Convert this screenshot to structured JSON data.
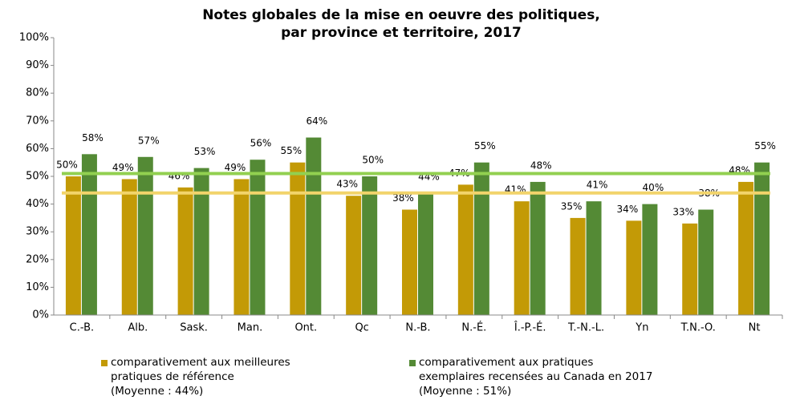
{
  "chart_data": {
    "type": "bar",
    "title": [
      "Notes globales de la mise en oeuvre des politiques,",
      "par province et territoire, 2017"
    ],
    "categories": [
      "C.-B.",
      "Alb.",
      "Sask.",
      "Man.",
      "Ont.",
      "Qc",
      "N.-B.",
      "N.-É.",
      "Î.-P.-É.",
      "T.-N.-L.",
      "Yn",
      "T.N.-O.",
      "Nt"
    ],
    "series": [
      {
        "name": "comparativement aux meilleures pratiques de référence",
        "color": "#c39a06",
        "average": 44,
        "average_label": "(Moyenne : 44%)",
        "average_color": "#f2d46b",
        "values": [
          50,
          49,
          46,
          49,
          55,
          43,
          38,
          47,
          41,
          35,
          34,
          33,
          48
        ],
        "value_labels": [
          "50%",
          "49%",
          "46%",
          "49%",
          "55%",
          "43%",
          "38%",
          "47%",
          "41%",
          "35%",
          "34%",
          "33%",
          "48%"
        ]
      },
      {
        "name": "comparativement aux pratiques exemplaires recensées au Canada en 2017",
        "color": "#548a35",
        "average": 51,
        "average_label": "(Moyenne : 51%)",
        "average_color": "#92d050",
        "values": [
          58,
          57,
          53,
          56,
          64,
          50,
          44,
          55,
          48,
          41,
          40,
          38,
          55
        ],
        "value_labels": [
          "58%",
          "57%",
          "53%",
          "56%",
          "64%",
          "50%",
          "44%",
          "55%",
          "48%",
          "41%",
          "40%",
          "38%",
          "55%"
        ]
      }
    ],
    "ylim": [
      0,
      100
    ],
    "yticks": [
      {
        "value": 0,
        "label": "0%"
      },
      {
        "value": 10,
        "label": "10%"
      },
      {
        "value": 20,
        "label": "20%"
      },
      {
        "value": 30,
        "label": "30%"
      },
      {
        "value": 40,
        "label": "40%"
      },
      {
        "value": 50,
        "label": "50%"
      },
      {
        "value": 60,
        "label": "60%"
      },
      {
        "value": 70,
        "label": "70%"
      },
      {
        "value": 80,
        "label": "80%"
      },
      {
        "value": 90,
        "label": "90%"
      },
      {
        "value": 100,
        "label": "100%"
      }
    ]
  }
}
